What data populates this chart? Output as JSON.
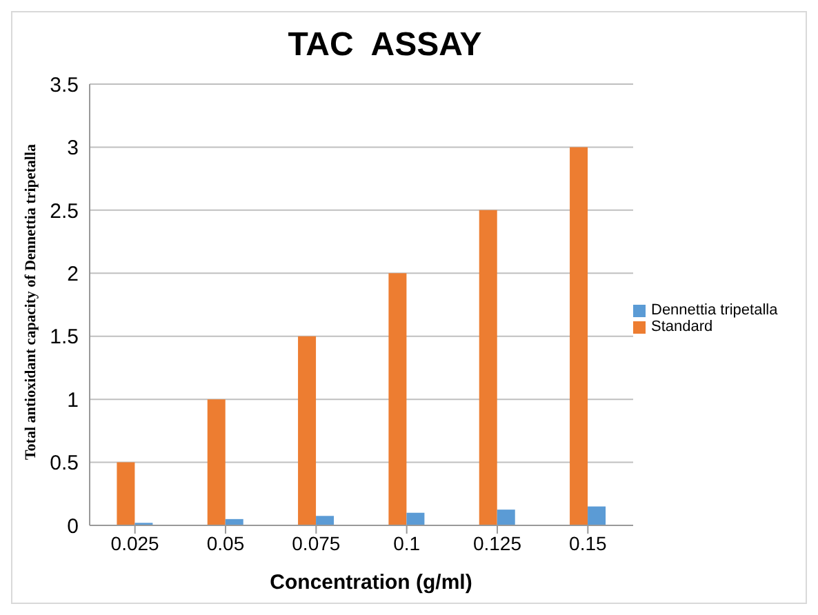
{
  "chart_data": {
    "type": "bar",
    "title": "TAC  ASSAY",
    "xlabel": "Concentration (g/ml)",
    "ylabel": "Total antioxidant capacity of Dennettia tripetalla",
    "categories": [
      "0.025",
      "0.05",
      "0.075",
      "0.1",
      "0.125",
      "0.15"
    ],
    "series": [
      {
        "name": "Standard",
        "color": "#ed7d31",
        "values": [
          0.5,
          1,
          1.5,
          2,
          2.5,
          3
        ]
      },
      {
        "name": "Dennettia tripetalla",
        "color": "#5b9bd5",
        "values": [
          0.02,
          0.05,
          0.075,
          0.1,
          0.125,
          0.15
        ]
      }
    ],
    "ylim": [
      0,
      3.5
    ],
    "yticks": [
      0,
      0.5,
      1,
      1.5,
      2,
      2.5,
      3,
      3.5
    ],
    "grid": "y",
    "legend": "right"
  }
}
